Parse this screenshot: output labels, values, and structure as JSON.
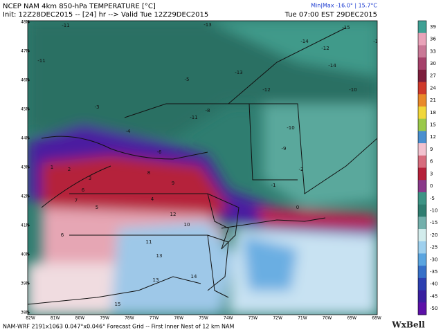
{
  "header": {
    "title": "NCEP NAM 4km 850-hPa TEMPERATURE [°C]",
    "init": "Init: 12Z28DEC2015 -- [24] hr --> Valid Tue 12Z29DEC2015",
    "valid_local": "Tue 07:00 EST 29DEC2015",
    "minmax": "Min|Max -16.0° | 15.7°C"
  },
  "map": {
    "lat_labels": [
      "48N",
      "47N",
      "46N",
      "45N",
      "44N",
      "43N",
      "42N",
      "41N",
      "40N",
      "39N",
      "38N"
    ],
    "lon_labels": [
      "82W",
      "81W",
      "80W",
      "79W",
      "78W",
      "77W",
      "76W",
      "75W",
      "74W",
      "73W",
      "72W",
      "71W",
      "70W",
      "69W",
      "68W"
    ],
    "contour_labels": [
      "-11",
      "-13",
      "-15",
      "-12",
      "-14",
      "-16",
      "-10",
      "-11",
      "-5",
      "-3",
      "-4",
      "-13",
      "-11",
      "-10",
      "-12",
      "-14",
      "1",
      "2",
      "3",
      "6",
      "8",
      "9",
      "7",
      "5",
      "4",
      "12",
      "13",
      "10",
      "11",
      "15",
      "0",
      "-1",
      "-2",
      "-6",
      "-8",
      "-9",
      "6",
      "14",
      "13"
    ]
  },
  "colorbar": {
    "items": [
      {
        "label": "39",
        "color": "#3fa094"
      },
      {
        "label": "36",
        "color": "#e9a3b9"
      },
      {
        "label": "33",
        "color": "#c97896"
      },
      {
        "label": "30",
        "color": "#a5416a"
      },
      {
        "label": "27",
        "color": "#7d1e3c"
      },
      {
        "label": "24",
        "color": "#cf3a2c"
      },
      {
        "label": "21",
        "color": "#e98a2a"
      },
      {
        "label": "18",
        "color": "#f1d73a"
      },
      {
        "label": "15",
        "color": "#9ac94a"
      },
      {
        "label": "12",
        "color": "#4a8fcf"
      },
      {
        "label": "9",
        "color": "#f2c2cf"
      },
      {
        "label": "6",
        "color": "#d76c7d"
      },
      {
        "label": "3",
        "color": "#b5213a"
      },
      {
        "label": "0",
        "color": "#8a3a8a"
      },
      {
        "label": "-5",
        "color": "#3d9485"
      },
      {
        "label": "-10",
        "color": "#2f7d70"
      },
      {
        "label": "-15",
        "color": "#73b0ac"
      },
      {
        "label": "-20",
        "color": "#d2ecec"
      },
      {
        "label": "-25",
        "color": "#9ed0ee"
      },
      {
        "label": "-30",
        "color": "#5aa5e0"
      },
      {
        "label": "-35",
        "color": "#3670c8"
      },
      {
        "label": "-40",
        "color": "#2c3fb0"
      },
      {
        "label": "-45",
        "color": "#3a1fa0"
      },
      {
        "label": "-50",
        "color": "#5c10a8"
      }
    ]
  },
  "footer": {
    "grid_info": "NAM-WRF 2191x1063 0.047°x0.046° Forecast Grid -- First Inner Nest of 12 km NAM",
    "logo": "WxBell"
  }
}
